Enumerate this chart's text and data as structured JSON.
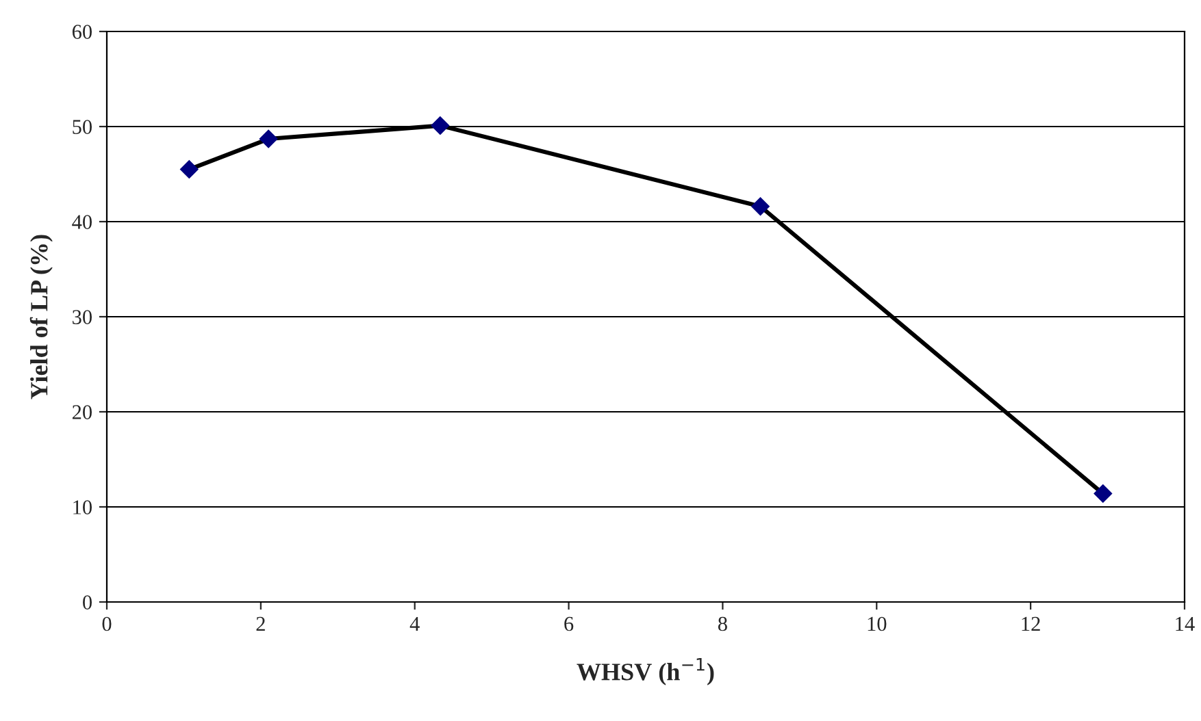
{
  "chart_data": {
    "type": "line",
    "xlabel": "WHSV (h$^{−1}$)",
    "ylabel": "Yield of LP (%)",
    "x": [
      1.07,
      2.1,
      4.33,
      8.49,
      12.94
    ],
    "series": [
      {
        "color": "#000080",
        "values": [
          45.5,
          48.7,
          50.1,
          41.6,
          11.4
        ]
      }
    ],
    "xlim": [
      0,
      14
    ],
    "xticks": [
      0,
      2,
      4,
      6,
      8,
      10,
      12,
      14
    ],
    "ylim": [
      0,
      60
    ],
    "yticks": [
      0,
      10,
      20,
      30,
      40,
      50,
      60
    ],
    "grid": "y",
    "marker": "diamond",
    "line_style": "solid"
  }
}
